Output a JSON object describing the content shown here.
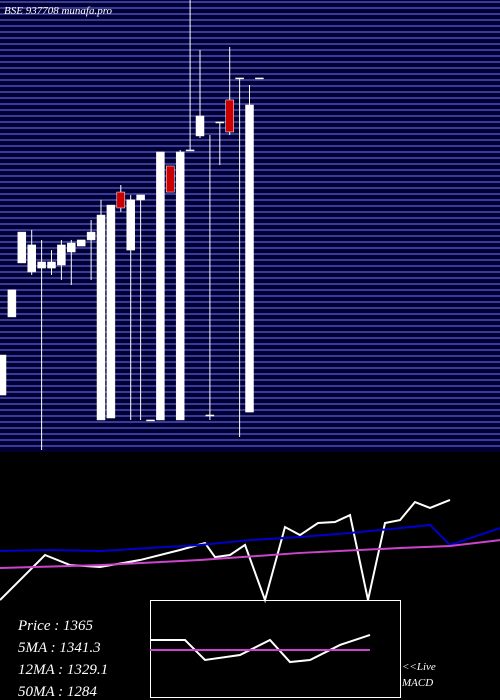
{
  "chart_data": [
    {
      "type": "candlestick",
      "title": "BSE 937708 munafa.pro",
      "up_color": "#ffffff",
      "down_color": "#cc0000",
      "ylim": [
        1150,
        1430
      ],
      "candles": [
        [
          1184.2,
          1209.1,
          1184.2,
          1209.1
        ],
        [
          1232.8,
          1249.6,
          1232.8,
          1249.6
        ],
        [
          1266.4,
          1285.6,
          1266.4,
          1285.6
        ],
        [
          1260.8,
          1286.9,
          1258.9,
          1277.6
        ],
        [
          1263.2,
          1280.7,
          1150,
          1267.0
        ],
        [
          1263.2,
          1274.4,
          1258.9,
          1267.0
        ],
        [
          1265.1,
          1280.7,
          1255.8,
          1277.6
        ],
        [
          1273.2,
          1280.7,
          1252.7,
          1278.8
        ],
        [
          1276.9,
          1280.7,
          1276.9,
          1280.7
        ],
        [
          1280.7,
          1293.1,
          1255.8,
          1285.6
        ],
        [
          1168.7,
          1305.6,
          1168.7,
          1296.2
        ],
        [
          1169.9,
          1302.4,
          1169.9,
          1302.4
        ],
        [
          1310.5,
          1314.9,
          1298.1,
          1300.6
        ],
        [
          1274.4,
          1308.7,
          1168.7,
          1305.6
        ],
        [
          1305.6,
          1308.7,
          1168.7,
          1308.7
        ],
        [
          1168.7,
          1168.7,
          1168.7,
          1168.7
        ],
        [
          1168.7,
          1335.4,
          1168.7,
          1335.4
        ],
        [
          1326.7,
          1326.7,
          1310.5,
          1310.5
        ],
        [
          1168.7,
          1336.7,
          1168.7,
          1335.4
        ],
        [
          1336.7,
          1430,
          1336.7,
          1336.7
        ],
        [
          1345.4,
          1398.9,
          1344.1,
          1357.8
        ],
        [
          1171.8,
          1346.0,
          1168.7,
          1171.8
        ],
        [
          1354.1,
          1354.1,
          1327.3,
          1354.1
        ],
        [
          1367.8,
          1400.8,
          1346.0,
          1347.9
        ],
        [
          1381.5,
          1381.5,
          1158.1,
          1381.5
        ],
        [
          1173.6,
          1377.1,
          1173.6,
          1364.7
        ],
        [
          1381.5,
          1381.5,
          1381.5,
          1381.5
        ]
      ]
    },
    {
      "type": "line",
      "xlim": [
        0,
        50
      ],
      "ylim": [
        0,
        100
      ],
      "series": [
        {
          "color": "#ffffff",
          "x": [
            0,
            4.5,
            7,
            10,
            14,
            18,
            20.5,
            21.5,
            23,
            24.5,
            26.5,
            28.5,
            30,
            31.8,
            33.5,
            35,
            36.8,
            38.5,
            40,
            41.5,
            43,
            45
          ],
          "values": [
            0,
            30.4,
            23.6,
            22.3,
            27,
            33.8,
            38.5,
            29,
            30.4,
            37.2,
            0,
            49.3,
            43.9,
            52,
            52.7,
            57.4,
            0,
            52,
            54,
            66.2,
            62.2,
            67.6
          ]
        },
        {
          "color": "#0000cc",
          "x": [
            0,
            5,
            10,
            15,
            20,
            25,
            30,
            35,
            40,
            43,
            45,
            50
          ],
          "values": [
            33.1,
            33.8,
            33.1,
            35.1,
            37.2,
            40.5,
            42.6,
            45.3,
            48.6,
            50.7,
            37.2,
            48.6
          ]
        },
        {
          "color": "#cc44cc",
          "x": [
            0,
            10,
            20,
            30,
            40,
            45,
            50
          ],
          "values": [
            21.6,
            23.6,
            27,
            31.8,
            35.1,
            36.5,
            40.5
          ]
        }
      ],
      "annotations": [
        "Price   : 1365",
        "5MA : 1341.3",
        "12MA : 1329.1",
        "50MA : 1284"
      ]
    },
    {
      "type": "line",
      "title": "MACD",
      "subtitle": "<<Live",
      "xlim": [
        15,
        40
      ],
      "ylim": [
        0,
        100
      ],
      "series": [
        {
          "color": "#ffffff",
          "x": [
            15,
            18.5,
            20.5,
            24,
            27,
            29,
            31,
            34,
            37
          ],
          "values": [
            59.2,
            59.2,
            38.8,
            43.9,
            59.2,
            36.7,
            38.8,
            54.1,
            64.3
          ]
        },
        {
          "color": "#cc44cc",
          "x": [
            15,
            37
          ],
          "values": [
            49,
            49
          ]
        }
      ]
    }
  ]
}
